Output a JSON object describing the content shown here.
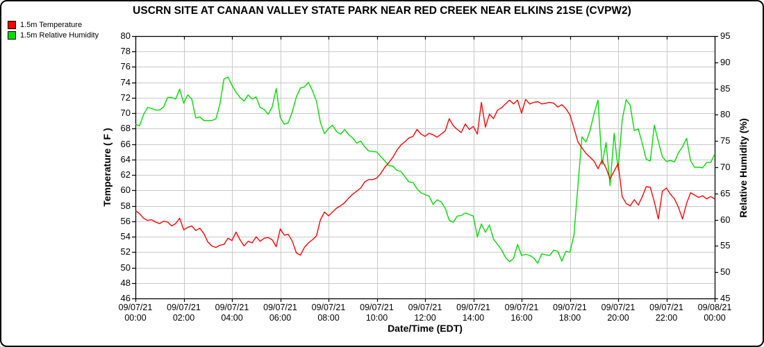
{
  "chart_data": {
    "type": "line",
    "title": "USCRN SITE AT CANAAN VALLEY STATE PARK NEAR RED CREEK NEAR ELKINS 21SE (CVPW2)",
    "grid": true,
    "colors": {
      "grid": "#c9c9c9",
      "axis": "#000000"
    },
    "x_axis": {
      "label": "Date/Time (EDT)",
      "range_hours": [
        0,
        24
      ],
      "tick_step_hours": 2,
      "ticks": [
        {
          "date": "09/07/21",
          "time": "00:00"
        },
        {
          "date": "09/07/21",
          "time": "02:00"
        },
        {
          "date": "09/07/21",
          "time": "04:00"
        },
        {
          "date": "09/07/21",
          "time": "06:00"
        },
        {
          "date": "09/07/21",
          "time": "08:00"
        },
        {
          "date": "09/07/21",
          "time": "10:00"
        },
        {
          "date": "09/07/21",
          "time": "12:00"
        },
        {
          "date": "09/07/21",
          "time": "14:00"
        },
        {
          "date": "09/07/21",
          "time": "16:00"
        },
        {
          "date": "09/07/21",
          "time": "18:00"
        },
        {
          "date": "09/07/21",
          "time": "20:00"
        },
        {
          "date": "09/07/21",
          "time": "22:00"
        },
        {
          "date": "09/08/21",
          "time": "00:00"
        }
      ]
    },
    "y_left": {
      "label": "Temperature ( F )",
      "min": 46,
      "max": 80,
      "step": 2
    },
    "y_right": {
      "label": "Relative Humidity (%)",
      "min": 45,
      "max": 95,
      "step": 5
    },
    "series": [
      {
        "name": "1.5m Temperature",
        "color": "#ff0000",
        "axis": "left",
        "interval_minutes": 10,
        "values": [
          57.4,
          57.0,
          56.4,
          56.1,
          56.2,
          55.9,
          55.7,
          56.0,
          55.9,
          55.4,
          55.7,
          56.4,
          54.9,
          55.2,
          55.4,
          54.8,
          55.1,
          54.4,
          53.3,
          52.8,
          52.6,
          52.9,
          53.0,
          53.8,
          53.5,
          54.6,
          53.6,
          52.8,
          53.4,
          53.2,
          54.0,
          53.4,
          53.8,
          53.9,
          53.6,
          52.7,
          55.0,
          54.2,
          54.3,
          53.4,
          51.9,
          51.6,
          52.6,
          53.2,
          53.6,
          54.1,
          56.2,
          57.2,
          56.7,
          57.2,
          57.7,
          58.0,
          58.4,
          59.0,
          59.5,
          59.9,
          60.3,
          61.1,
          61.4,
          61.4,
          61.6,
          62.2,
          63.0,
          63.6,
          64.3,
          65.2,
          65.9,
          66.3,
          66.8,
          67.0,
          67.9,
          67.3,
          67.0,
          67.4,
          67.2,
          66.9,
          67.3,
          67.7,
          69.3,
          68.4,
          67.9,
          67.5,
          68.6,
          67.9,
          68.3,
          67.3,
          71.4,
          68.2,
          69.9,
          69.3,
          70.4,
          70.7,
          71.2,
          71.7,
          71.2,
          71.7,
          70.0,
          71.8,
          71.2,
          71.4,
          71.5,
          71.2,
          71.3,
          71.4,
          71.3,
          70.8,
          71.1,
          70.6,
          69.8,
          68.1,
          66.3,
          65.5,
          64.8,
          64.3,
          63.8,
          62.8,
          63.9,
          62.9,
          61.5,
          62.5,
          63.5,
          59.2,
          58.3,
          58.0,
          58.8,
          58.1,
          59.2,
          60.5,
          60.4,
          58.5,
          56.3,
          59.9,
          60.3,
          59.5,
          58.9,
          57.8,
          56.3,
          58.3,
          59.7,
          59.4,
          59.1,
          59.3,
          58.9,
          59.2,
          58.9
        ]
      },
      {
        "name": "1.5m Relative Humidity",
        "color": "#00dd00",
        "axis": "right",
        "interval_minutes": 10,
        "values": [
          78.2,
          77.9,
          80.0,
          81.4,
          81.2,
          80.9,
          80.9,
          81.5,
          83.3,
          83.3,
          83.0,
          84.9,
          82.2,
          83.8,
          83.0,
          79.4,
          79.6,
          78.9,
          78.9,
          78.9,
          79.2,
          82.0,
          86.8,
          87.2,
          85.6,
          84.3,
          83.3,
          82.6,
          83.8,
          83.0,
          83.4,
          81.4,
          81.0,
          80.1,
          81.5,
          85.0,
          79.5,
          78.2,
          78.5,
          80.6,
          83.4,
          85.1,
          85.3,
          86.2,
          84.6,
          82.6,
          78.5,
          76.4,
          77.4,
          78.0,
          76.8,
          76.3,
          77.2,
          76.2,
          75.6,
          74.6,
          75.0,
          73.9,
          73.1,
          73.0,
          72.9,
          72.0,
          71.2,
          70.3,
          70.2,
          69.4,
          69.2,
          68.2,
          67.2,
          67.1,
          65.9,
          65.1,
          64.8,
          64.5,
          62.9,
          63.8,
          63.4,
          62.2,
          59.9,
          59.5,
          60.7,
          60.8,
          61.3,
          61.0,
          60.7,
          56.7,
          59.2,
          57.6,
          59.0,
          56.3,
          55.3,
          54.3,
          52.8,
          52.0,
          52.6,
          55.3,
          53.2,
          53.4,
          53.2,
          52.7,
          51.7,
          53.5,
          53.3,
          53.2,
          54.2,
          54.0,
          52.1,
          54.0,
          53.8,
          57.0,
          66.5,
          75.8,
          74.8,
          77.0,
          80.2,
          82.8,
          70.5,
          74.7,
          66.5,
          76.5,
          69.5,
          79.0,
          82.9,
          81.8,
          77.0,
          77.3,
          74.5,
          71.5,
          71.2,
          78.0,
          74.9,
          72.0,
          71.1,
          71.3,
          71.0,
          72.8,
          73.9,
          75.5,
          71.2,
          70.0,
          70.0,
          69.9,
          70.9,
          70.9,
          72.5
        ]
      }
    ]
  }
}
